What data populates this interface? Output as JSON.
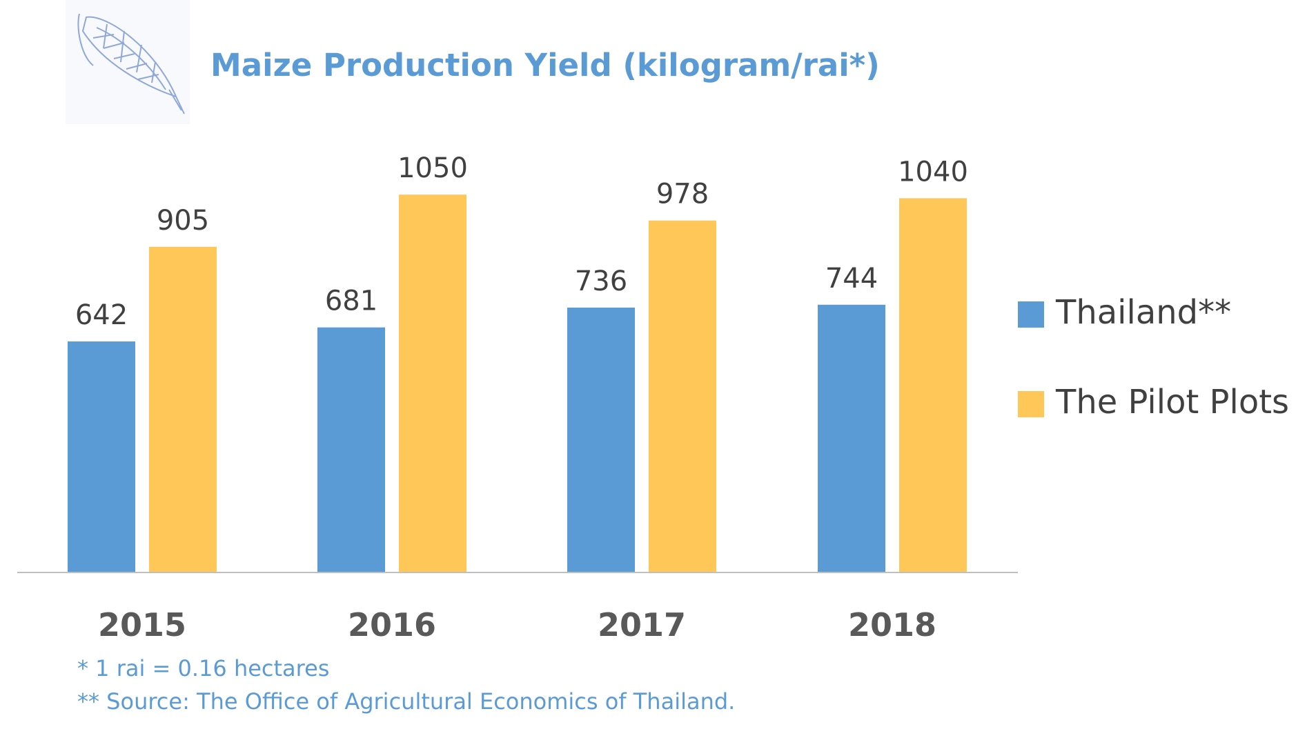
{
  "colors": {
    "title": "#5b9bd5",
    "thailand": "#5b9bd5",
    "pilot": "#ffc658",
    "axis": "#bfbfbf",
    "label": "#404040",
    "category": "#595959"
  },
  "logo": {
    "icon": "corn-cob-icon"
  },
  "chart_data": {
    "type": "bar",
    "title": "Maize Production Yield (kilogram/rai*)",
    "categories": [
      "2015",
      "2016",
      "2017",
      "2018"
    ],
    "series": [
      {
        "name": "Thailand**",
        "color": "#5b9bd5",
        "values": [
          642,
          681,
          736,
          744
        ]
      },
      {
        "name": "The Pilot Plots",
        "color": "#ffc658",
        "values": [
          905,
          1050,
          978,
          1040
        ]
      }
    ],
    "data_labels": true,
    "grid": false,
    "legend": "right",
    "ylim": [
      0,
      1150
    ]
  },
  "notes": {
    "rai": "* 1 rai = 0.16 hectares",
    "source": "** Source: The Office of Agricultural Economics of Thailand."
  }
}
